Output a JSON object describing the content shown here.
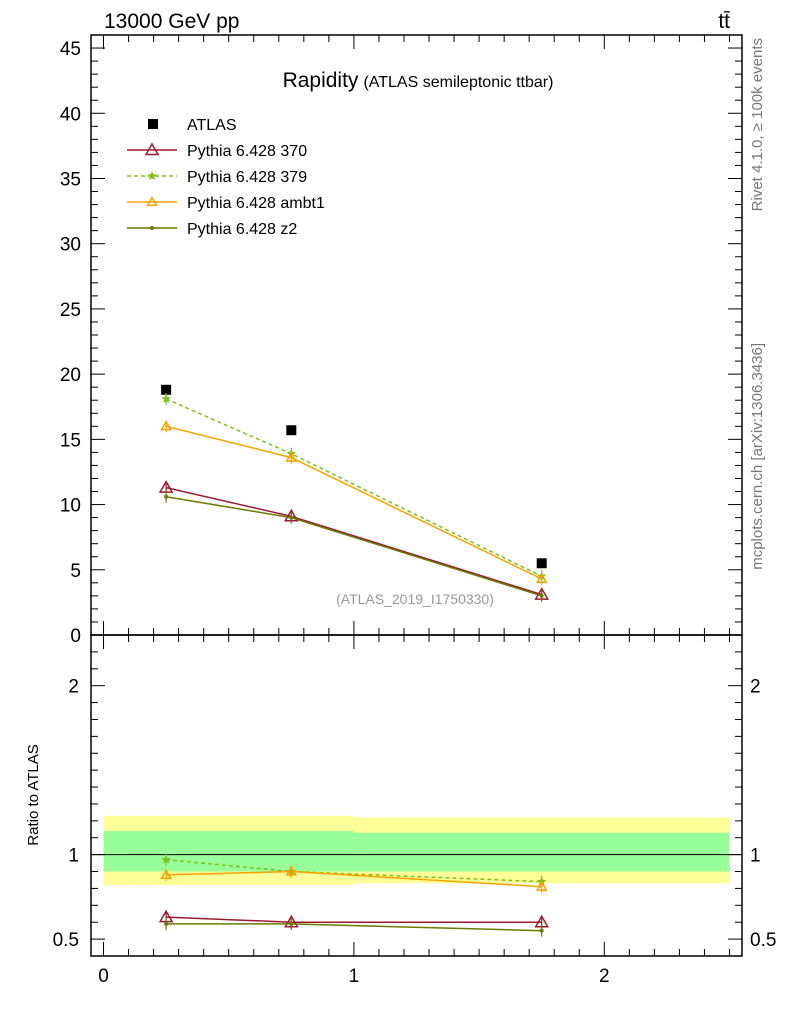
{
  "header": {
    "energy_label": "13000 GeV pp",
    "process_label": "tt̄"
  },
  "side_labels": {
    "rivet": "Rivet 4.1.0, ≥ 100k events",
    "source": "mcplots.cern.ch [arXiv:1306.3436]"
  },
  "colors": {
    "atlas": "#000000",
    "p370": "#9b1b30",
    "p379": "#7fbf1f",
    "ambt1": "#f5a300",
    "z2": "#6b7a00",
    "band_inner": "#99ff99",
    "band_outer": "#ffff99"
  },
  "chart_data": [
    {
      "type": "line",
      "title": "Rapidity",
      "subtitle": "(ATLAS semileptonic ttbar)",
      "analysis_id": "(ATLAS_2019_I1750330)",
      "xlabel": "",
      "ylabel": "",
      "xlim": [
        -0.05,
        2.55
      ],
      "ylim": [
        0,
        46
      ],
      "yticks": [
        0,
        5,
        10,
        15,
        20,
        25,
        30,
        35,
        40,
        45
      ],
      "ytick_labels": [
        "0",
        "5",
        "10",
        "15",
        "20",
        "25",
        "30",
        "35",
        "40",
        "45"
      ],
      "legend_position": "top-left",
      "series": [
        {
          "name": "ATLAS",
          "x": [
            0.25,
            0.75,
            1.75
          ],
          "y": [
            18.8,
            15.7,
            5.5
          ],
          "style": "square"
        },
        {
          "name": "Pythia 6.428 370",
          "x": [
            0.25,
            0.75,
            1.75
          ],
          "y": [
            11.3,
            9.1,
            3.1
          ],
          "style": "triangle-open"
        },
        {
          "name": "Pythia 6.428 379",
          "x": [
            0.25,
            0.75,
            1.75
          ],
          "y": [
            18.1,
            13.9,
            4.5
          ],
          "style": "star-dashed"
        },
        {
          "name": "Pythia 6.428 ambt1",
          "x": [
            0.25,
            0.75,
            1.75
          ],
          "y": [
            16.0,
            13.6,
            4.3
          ],
          "style": "triangle-small"
        },
        {
          "name": "Pythia 6.428 z2",
          "x": [
            0.25,
            0.75,
            1.75
          ],
          "y": [
            10.6,
            9.0,
            3.0
          ],
          "style": "dot"
        }
      ]
    },
    {
      "type": "line",
      "title": "",
      "xlabel": "",
      "ylabel": "Ratio to ATLAS",
      "xlim": [
        -0.05,
        2.55
      ],
      "ylim": [
        0.4,
        2.3
      ],
      "xticks": [
        0,
        1,
        2
      ],
      "xtick_labels": [
        "0",
        "1",
        "2"
      ],
      "yticks": [
        0.5,
        1,
        2
      ],
      "ytick_labels": [
        "0.5",
        "1",
        "2"
      ],
      "bands": [
        {
          "x0": 0,
          "x1": 1,
          "inner": [
            0.9,
            1.14
          ],
          "outer": [
            0.82,
            1.23
          ]
        },
        {
          "x0": 1,
          "x1": 2.5,
          "inner": [
            0.9,
            1.13
          ],
          "outer": [
            0.83,
            1.22
          ]
        }
      ],
      "series": [
        {
          "name": "Pythia 6.428 370",
          "x": [
            0.25,
            0.75,
            1.75
          ],
          "y": [
            0.63,
            0.6,
            0.6
          ]
        },
        {
          "name": "Pythia 6.428 379",
          "x": [
            0.25,
            0.75,
            1.75
          ],
          "y": [
            0.97,
            0.9,
            0.84
          ]
        },
        {
          "name": "Pythia 6.428 ambt1",
          "x": [
            0.25,
            0.75,
            1.75
          ],
          "y": [
            0.88,
            0.9,
            0.81
          ]
        },
        {
          "name": "Pythia 6.428 z2",
          "x": [
            0.25,
            0.75,
            1.75
          ],
          "y": [
            0.59,
            0.59,
            0.55
          ]
        }
      ]
    }
  ]
}
